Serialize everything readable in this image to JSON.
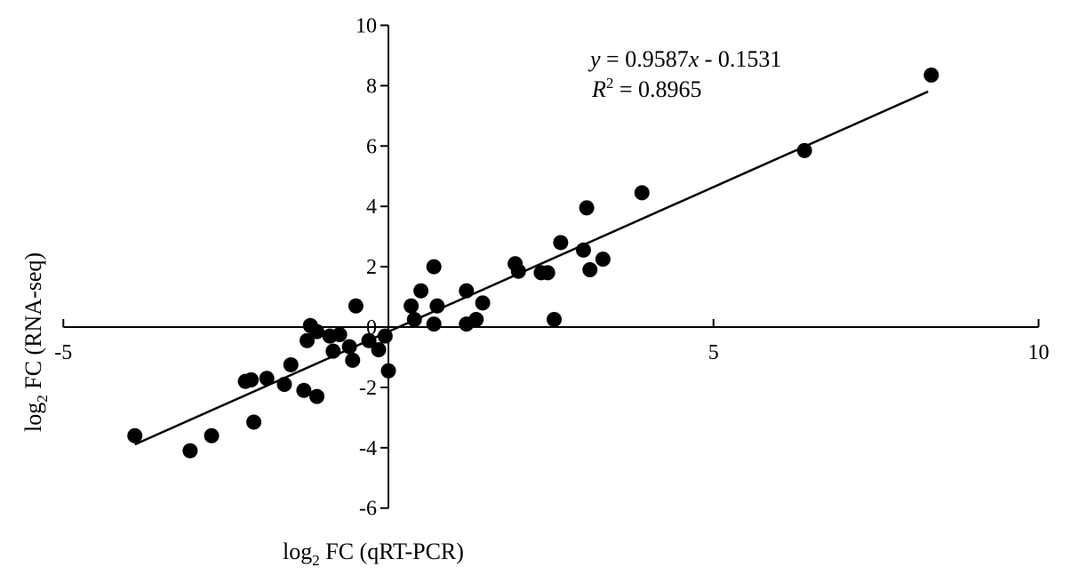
{
  "chart_data": {
    "type": "scatter",
    "xlim": [
      -5,
      10
    ],
    "ylim": [
      -6,
      10
    ],
    "x_ticks": [
      -5,
      0,
      5,
      10
    ],
    "y_ticks": [
      -6,
      -4,
      -2,
      0,
      2,
      4,
      6,
      8,
      10
    ],
    "x_tick_labels": [
      "-5",
      "0",
      "5",
      "10"
    ],
    "y_tick_labels": [
      "-6",
      "-4",
      "-2",
      "0",
      "2",
      "4",
      "6",
      "8",
      "10"
    ],
    "xlabel": {
      "base": "log",
      "sub": "2",
      "rest": " FC (qRT-PCR)"
    },
    "ylabel": {
      "base": "log",
      "sub": "2",
      "rest": " FC (RNA-seq)"
    },
    "equation": {
      "y_var": "y",
      "mid": " = 0.9587",
      "x_var": "x",
      "tail": " - 0.1531",
      "r_var": "R",
      "r_sup": "2",
      "r_tail": " = 0.8965"
    },
    "trendline": {
      "slope": 0.9587,
      "intercept": -0.1531,
      "x_range": [
        -3.9,
        8.3
      ]
    },
    "points": [
      [
        -3.9,
        -3.6
      ],
      [
        -3.05,
        -4.1
      ],
      [
        -2.72,
        -3.6
      ],
      [
        -2.07,
        -3.15
      ],
      [
        -2.11,
        -1.75
      ],
      [
        -1.87,
        -1.7
      ],
      [
        -2.2,
        -1.8
      ],
      [
        -1.6,
        -1.9
      ],
      [
        -1.5,
        -1.25
      ],
      [
        -1.3,
        -2.1
      ],
      [
        -1.1,
        -2.3
      ],
      [
        -1.25,
        -0.45
      ],
      [
        -1.2,
        0.05
      ],
      [
        -1.1,
        -0.15
      ],
      [
        -0.9,
        -0.3
      ],
      [
        -0.85,
        -0.8
      ],
      [
        -0.75,
        -0.25
      ],
      [
        -0.6,
        -0.65
      ],
      [
        -0.55,
        -1.1
      ],
      [
        -0.5,
        0.7
      ],
      [
        -0.3,
        -0.45
      ],
      [
        -0.15,
        -0.75
      ],
      [
        -0.05,
        -0.3
      ],
      [
        0.0,
        -1.45
      ],
      [
        0.35,
        0.7
      ],
      [
        0.4,
        0.25
      ],
      [
        0.5,
        1.2
      ],
      [
        0.7,
        0.1
      ],
      [
        0.7,
        2.0
      ],
      [
        0.75,
        0.7
      ],
      [
        1.2,
        1.2
      ],
      [
        1.2,
        0.1
      ],
      [
        1.35,
        0.25
      ],
      [
        1.45,
        0.8
      ],
      [
        1.95,
        2.1
      ],
      [
        2.0,
        1.85
      ],
      [
        2.35,
        1.8
      ],
      [
        2.45,
        1.8
      ],
      [
        2.55,
        0.25
      ],
      [
        2.65,
        2.8
      ],
      [
        3.0,
        2.55
      ],
      [
        3.05,
        3.95
      ],
      [
        3.1,
        1.9
      ],
      [
        3.3,
        2.25
      ],
      [
        3.9,
        4.45
      ],
      [
        6.4,
        5.85
      ],
      [
        8.35,
        8.35
      ]
    ]
  }
}
